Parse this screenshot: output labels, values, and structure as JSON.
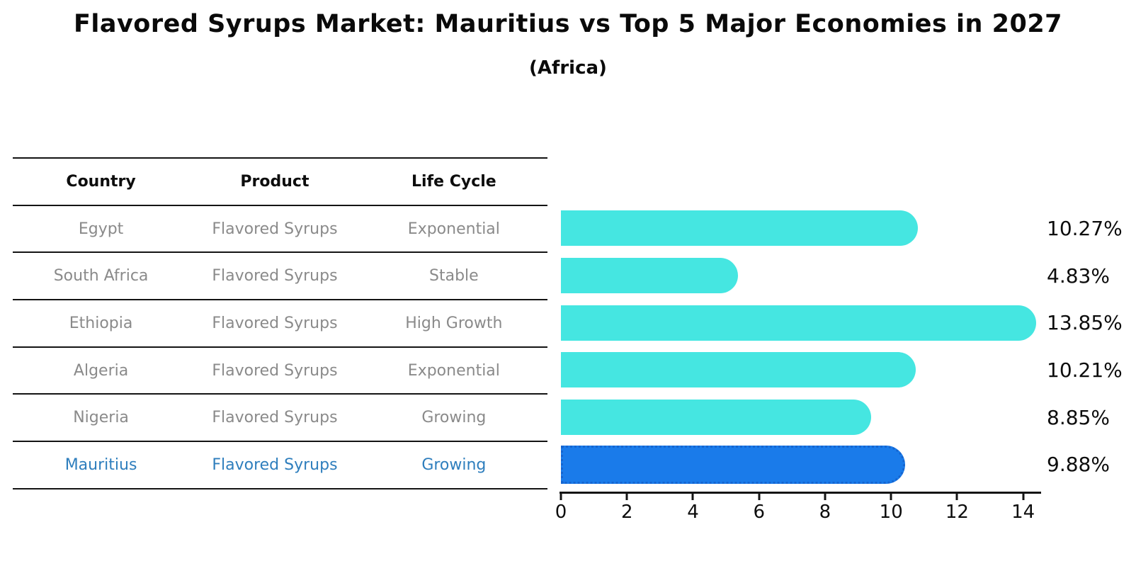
{
  "chart_data": {
    "type": "bar",
    "orientation": "horizontal",
    "title": "Flavored Syrups Market: Mauritius vs Top 5 Major Economies in 2027",
    "subtitle": "(Africa)",
    "categories": [
      "Egypt",
      "South Africa",
      "Ethiopia",
      "Algeria",
      "Nigeria",
      "Mauritius"
    ],
    "values": [
      10.27,
      4.83,
      13.85,
      10.21,
      8.85,
      9.88
    ],
    "value_labels": [
      "10.27%",
      "4.83%",
      "13.85%",
      "10.21%",
      "8.85%",
      "9.88%"
    ],
    "highlight_index": 5,
    "xlabel": "",
    "ylabel": "",
    "xlim": [
      0,
      14.5
    ],
    "xticks": [
      0,
      2,
      4,
      6,
      8,
      10,
      12,
      14
    ],
    "grid": false,
    "legend": false,
    "bar_color": "#45E6E1",
    "highlight_bar_color": "#1A7BEA",
    "highlight_border_color": "#1565D0"
  },
  "table": {
    "headers": [
      "Country",
      "Product",
      "Life Cycle"
    ],
    "rows": [
      {
        "country": "Egypt",
        "product": "Flavored Syrups",
        "life_cycle": "Exponential",
        "highlight": false
      },
      {
        "country": "South Africa",
        "product": "Flavored Syrups",
        "life_cycle": "Stable",
        "highlight": false
      },
      {
        "country": "Ethiopia",
        "product": "Flavored Syrups",
        "life_cycle": "High Growth",
        "highlight": false
      },
      {
        "country": "Algeria",
        "product": "Flavored Syrups",
        "life_cycle": "Exponential",
        "highlight": false
      },
      {
        "country": "Nigeria",
        "product": "Flavored Syrups",
        "life_cycle": "Growing",
        "highlight": false
      },
      {
        "country": "Mauritius",
        "product": "Flavored Syrups",
        "life_cycle": "Growing",
        "highlight": true
      }
    ],
    "text_color": "#8A8A8A",
    "highlight_text_color": "#2E7EBD",
    "line_color": "#141414"
  }
}
